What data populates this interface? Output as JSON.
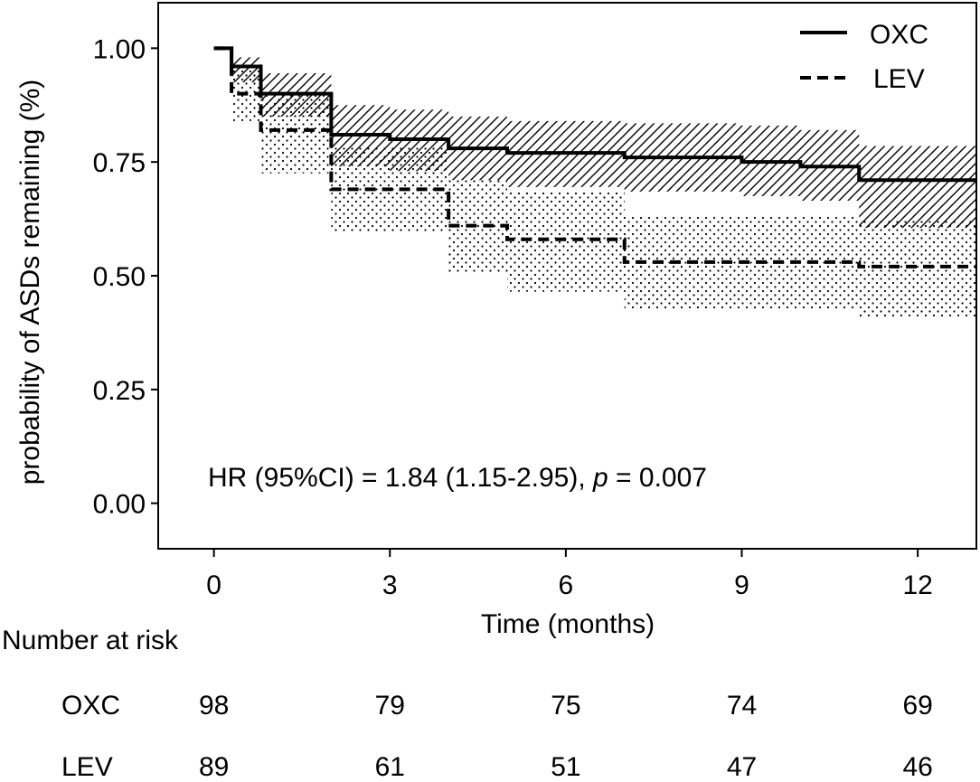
{
  "chart_data": {
    "type": "line",
    "subtype": "kaplan-meier",
    "xlabel": "Time (months)",
    "ylabel": "probability of ASDs remaining (%)",
    "xlim": [
      -0.95,
      13
    ],
    "ylim": [
      -0.1,
      1.1
    ],
    "xticks": [
      0,
      3,
      6,
      9,
      12
    ],
    "xtick_labels": [
      "0",
      "3",
      "6",
      "9",
      "12"
    ],
    "yticks": [
      0.0,
      0.25,
      0.5,
      0.75,
      1.0
    ],
    "ytick_labels": [
      "0.00",
      "0.25",
      "0.50",
      "0.75",
      "1.00"
    ],
    "legend_position": "top-right",
    "annotation": {
      "prefix": "HR (95%CI) = 1.84 (1.15-2.95), ",
      "p_symbol": "p",
      "suffix": " = 0.007"
    },
    "series": [
      {
        "name": "OXC",
        "line_style": "solid",
        "ci_pattern": "hatch",
        "steps": [
          [
            0,
            1.0
          ],
          [
            0.3,
            0.96
          ],
          [
            0.8,
            0.9
          ],
          [
            2.0,
            0.81
          ],
          [
            3.0,
            0.8
          ],
          [
            4.0,
            0.78
          ],
          [
            5.0,
            0.77
          ],
          [
            7.0,
            0.76
          ],
          [
            9.0,
            0.75
          ],
          [
            10.0,
            0.74
          ],
          [
            11.0,
            0.71
          ],
          [
            13.0,
            0.71
          ]
        ],
        "ci_upper": [
          1.0,
          0.98,
          0.945,
          0.875,
          0.865,
          0.85,
          0.84,
          0.835,
          0.83,
          0.82,
          0.785,
          0.785
        ],
        "ci_lower": [
          1.0,
          0.925,
          0.85,
          0.74,
          0.73,
          0.71,
          0.695,
          0.685,
          0.675,
          0.665,
          0.605,
          0.605
        ]
      },
      {
        "name": "LEV",
        "line_style": "dashed",
        "ci_pattern": "dots",
        "steps": [
          [
            0,
            1.0
          ],
          [
            0.3,
            0.9
          ],
          [
            0.8,
            0.82
          ],
          [
            2.0,
            0.69
          ],
          [
            4.0,
            0.61
          ],
          [
            5.0,
            0.58
          ],
          [
            7.0,
            0.53
          ],
          [
            11.0,
            0.52
          ],
          [
            13.0,
            0.52
          ]
        ],
        "ci_upper": [
          1.0,
          0.96,
          0.9,
          0.785,
          0.71,
          0.685,
          0.63,
          0.625,
          0.625
        ],
        "ci_lower": [
          1.0,
          0.84,
          0.725,
          0.595,
          0.505,
          0.465,
          0.425,
          0.41,
          0.41
        ]
      }
    ],
    "risk_table": {
      "title": "Number at risk",
      "times": [
        0,
        3,
        6,
        9,
        12
      ],
      "rows": [
        {
          "label": "OXC",
          "values": [
            "98",
            "79",
            "75",
            "74",
            "69"
          ]
        },
        {
          "label": "LEV",
          "values": [
            "89",
            "61",
            "51",
            "47",
            "46"
          ]
        }
      ]
    }
  }
}
